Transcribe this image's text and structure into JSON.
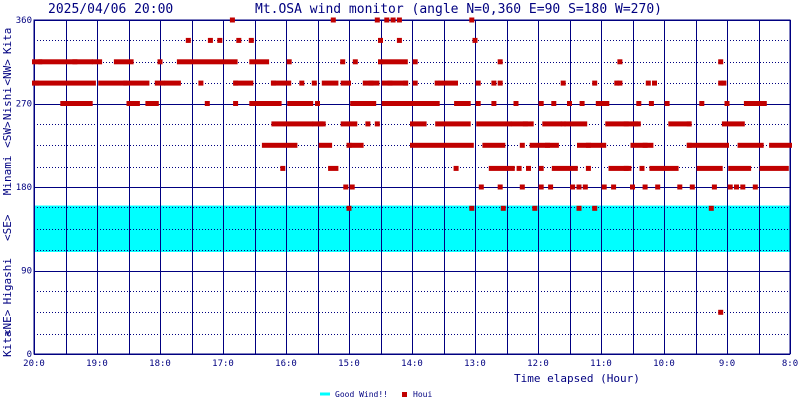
{
  "header": {
    "timestamp": "2025/04/06 20:00",
    "title": "Mt.OSA wind monitor (angle N=0,360 E=90 S=180 W=270)"
  },
  "chart_data": {
    "type": "scatter",
    "title": "Mt.OSA wind monitor (angle N=0,360 E=90 S=180 W=270)",
    "xlabel": "Time elapsed (Hour)",
    "ylabel": "",
    "xlim": [
      20,
      8
    ],
    "ylim": [
      0,
      360
    ],
    "x_tick_labels": [
      "20:0",
      "19:0",
      "18:0",
      "17:0",
      "16:0",
      "15:0",
      "14:0",
      "13:0",
      "12:0",
      "11:0",
      "10:0",
      "9:0",
      "8:0"
    ],
    "x_ticks": [
      20,
      19,
      18,
      17,
      16,
      15,
      14,
      13,
      12,
      11,
      10,
      9,
      8
    ],
    "y_ticks": [
      0,
      90,
      180,
      270,
      360
    ],
    "y_tick_labels": [
      "0",
      "90",
      "180",
      "270",
      "360"
    ],
    "direction_labels": [
      {
        "text": "Kita",
        "y_from": 360,
        "y_to": 315
      },
      {
        "text": "<NW>",
        "y_from": 315,
        "y_to": 292
      },
      {
        "text": "Nishi",
        "y_from": 292,
        "y_to": 248
      },
      {
        "text": "<SW>",
        "y_from": 248,
        "y_to": 225
      },
      {
        "text": "Minami",
        "y_from": 225,
        "y_to": 160
      },
      {
        "text": "<SE>",
        "y_from": 160,
        "y_to": 112
      },
      {
        "text": "Higashi",
        "y_from": 112,
        "y_to": 45
      },
      {
        "text": "<NE>",
        "y_from": 45,
        "y_to": 22
      },
      {
        "text": "Kita",
        "y_from": 22,
        "y_to": 0
      }
    ],
    "good_wind": {
      "y_from": 110,
      "y_to": 160,
      "color": "#00ffff"
    },
    "grid": true,
    "legend": {
      "placement": "bottom",
      "items": [
        {
          "label": "Good Wind!!",
          "color": "#00ffff",
          "kind": "line"
        },
        {
          "label": "Houi",
          "color": "#c00000",
          "kind": "square"
        }
      ]
    },
    "series": [
      {
        "name": "Houi",
        "color": "#c00000",
        "segments": [
          [
            20.0,
            19.95,
            292
          ],
          [
            20.0,
            19.9,
            315
          ],
          [
            19.95,
            19.05,
            292
          ],
          [
            19.9,
            19.1,
            315
          ],
          [
            19.55,
            19.3,
            270
          ],
          [
            19.4,
            19.1,
            270
          ],
          [
            19.05,
            18.95,
            315
          ],
          [
            18.7,
            18.45,
            315
          ],
          [
            18.95,
            18.55,
            292
          ],
          [
            18.55,
            18.2,
            292
          ],
          [
            18.5,
            18.35,
            270
          ],
          [
            18.2,
            18.05,
            270
          ],
          [
            18.05,
            17.95,
            292
          ],
          [
            17.9,
            17.7,
            292
          ],
          [
            17.7,
            16.8,
            315
          ],
          [
            16.8,
            16.55,
            292
          ],
          [
            16.55,
            16.3,
            315
          ],
          [
            16.2,
            15.95,
            292
          ],
          [
            16.55,
            16.1,
            270
          ],
          [
            15.95,
            15.6,
            270
          ],
          [
            16.2,
            15.6,
            248
          ],
          [
            16.35,
            15.85,
            225
          ],
          [
            15.55,
            15.4,
            248
          ],
          [
            15.45,
            15.3,
            225
          ],
          [
            15.3,
            15.2,
            200
          ],
          [
            15.4,
            15.2,
            292
          ],
          [
            15.1,
            15.0,
            292
          ],
          [
            15.1,
            14.9,
            248
          ],
          [
            14.95,
            14.6,
            270
          ],
          [
            14.75,
            14.55,
            292
          ],
          [
            14.95,
            14.8,
            225
          ],
          [
            14.45,
            14.1,
            315
          ],
          [
            14.45,
            14.1,
            292
          ],
          [
            14.45,
            13.6,
            270
          ],
          [
            14.0,
            13.8,
            248
          ],
          [
            14.0,
            13.05,
            225
          ],
          [
            13.6,
            13.1,
            248
          ],
          [
            13.55,
            13.3,
            292
          ],
          [
            13.3,
            13.1,
            270
          ],
          [
            12.95,
            12.45,
            248
          ],
          [
            12.85,
            12.55,
            225
          ],
          [
            12.75,
            12.4,
            200
          ],
          [
            12.4,
            12.1,
            248
          ],
          [
            12.1,
            11.7,
            225
          ],
          [
            11.9,
            11.65,
            248
          ],
          [
            11.75,
            11.4,
            200
          ],
          [
            11.55,
            11.25,
            248
          ],
          [
            11.35,
            10.95,
            225
          ],
          [
            11.05,
            10.9,
            270
          ],
          [
            10.9,
            10.4,
            248
          ],
          [
            10.85,
            10.55,
            200
          ],
          [
            10.5,
            10.2,
            225
          ],
          [
            10.2,
            9.8,
            200
          ],
          [
            9.9,
            9.6,
            248
          ],
          [
            9.6,
            9.0,
            225
          ],
          [
            9.45,
            9.1,
            200
          ],
          [
            9.05,
            8.75,
            248
          ],
          [
            8.95,
            8.65,
            200
          ],
          [
            8.8,
            8.45,
            225
          ],
          [
            8.7,
            8.4,
            270
          ],
          [
            8.45,
            8.05,
            200
          ],
          [
            8.3,
            8.0,
            225
          ]
        ],
        "points": [
          [
            16.85,
            360
          ],
          [
            15.25,
            360
          ],
          [
            14.55,
            360
          ],
          [
            14.4,
            360
          ],
          [
            14.3,
            360
          ],
          [
            14.2,
            360
          ],
          [
            13.05,
            360
          ],
          [
            17.55,
            338
          ],
          [
            17.2,
            338
          ],
          [
            17.05,
            338
          ],
          [
            16.75,
            338
          ],
          [
            16.55,
            338
          ],
          [
            14.5,
            338
          ],
          [
            14.2,
            338
          ],
          [
            13.0,
            338
          ],
          [
            19.35,
            315
          ],
          [
            18.0,
            315
          ],
          [
            15.95,
            315
          ],
          [
            15.1,
            315
          ],
          [
            14.9,
            315
          ],
          [
            14.5,
            315
          ],
          [
            13.95,
            315
          ],
          [
            12.6,
            315
          ],
          [
            10.7,
            315
          ],
          [
            9.1,
            315
          ],
          [
            17.35,
            292
          ],
          [
            16.8,
            292
          ],
          [
            16.2,
            292
          ],
          [
            15.75,
            292
          ],
          [
            15.55,
            292
          ],
          [
            14.65,
            292
          ],
          [
            14.35,
            292
          ],
          [
            14.1,
            292
          ],
          [
            13.95,
            292
          ],
          [
            13.6,
            292
          ],
          [
            12.95,
            292
          ],
          [
            12.7,
            292
          ],
          [
            12.6,
            292
          ],
          [
            11.6,
            292
          ],
          [
            11.1,
            292
          ],
          [
            10.75,
            292
          ],
          [
            10.7,
            292
          ],
          [
            10.25,
            292
          ],
          [
            10.15,
            292
          ],
          [
            9.1,
            292
          ],
          [
            9.05,
            292
          ],
          [
            17.25,
            270
          ],
          [
            16.8,
            270
          ],
          [
            15.8,
            270
          ],
          [
            15.5,
            270
          ],
          [
            13.8,
            270
          ],
          [
            13.6,
            270
          ],
          [
            12.95,
            270
          ],
          [
            12.7,
            270
          ],
          [
            12.35,
            270
          ],
          [
            11.95,
            270
          ],
          [
            11.75,
            270
          ],
          [
            11.5,
            270
          ],
          [
            11.3,
            270
          ],
          [
            10.4,
            270
          ],
          [
            10.2,
            270
          ],
          [
            9.95,
            270
          ],
          [
            9.4,
            270
          ],
          [
            9.0,
            270
          ],
          [
            15.45,
            248
          ],
          [
            14.7,
            248
          ],
          [
            14.55,
            248
          ],
          [
            12.2,
            248
          ],
          [
            11.6,
            248
          ],
          [
            10.6,
            248
          ],
          [
            10.45,
            248
          ],
          [
            9.6,
            248
          ],
          [
            15.0,
            225
          ],
          [
            12.25,
            225
          ],
          [
            11.85,
            225
          ],
          [
            11.2,
            225
          ],
          [
            10.3,
            225
          ],
          [
            9.6,
            225
          ],
          [
            16.05,
            200
          ],
          [
            13.3,
            200
          ],
          [
            12.3,
            200
          ],
          [
            12.15,
            200
          ],
          [
            11.95,
            200
          ],
          [
            11.2,
            200
          ],
          [
            10.6,
            200
          ],
          [
            10.35,
            200
          ],
          [
            15.05,
            180
          ],
          [
            14.95,
            180
          ],
          [
            12.9,
            180
          ],
          [
            12.6,
            180
          ],
          [
            12.25,
            180
          ],
          [
            11.95,
            180
          ],
          [
            11.8,
            180
          ],
          [
            11.45,
            180
          ],
          [
            11.35,
            180
          ],
          [
            11.25,
            180
          ],
          [
            10.95,
            180
          ],
          [
            10.8,
            180
          ],
          [
            10.5,
            180
          ],
          [
            10.3,
            180
          ],
          [
            10.1,
            180
          ],
          [
            9.75,
            180
          ],
          [
            9.55,
            180
          ],
          [
            9.2,
            180
          ],
          [
            8.95,
            180
          ],
          [
            8.85,
            180
          ],
          [
            8.75,
            180
          ],
          [
            8.55,
            180
          ],
          [
            15.0,
            157
          ],
          [
            13.05,
            157
          ],
          [
            12.55,
            157
          ],
          [
            12.05,
            157
          ],
          [
            11.35,
            157
          ],
          [
            11.1,
            157
          ],
          [
            9.25,
            157
          ],
          [
            9.1,
            45
          ]
        ]
      }
    ]
  }
}
